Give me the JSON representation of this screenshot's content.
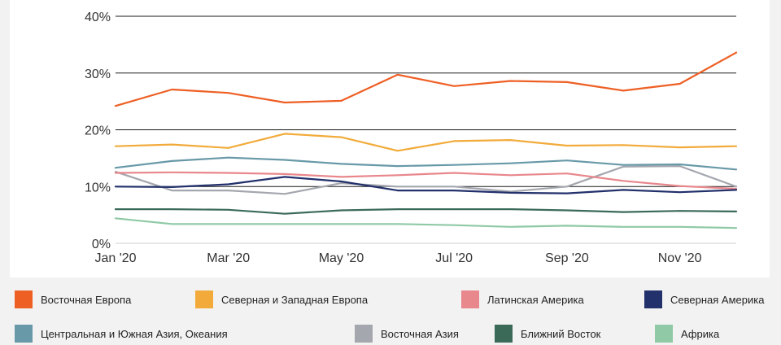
{
  "colors": {
    "Восточная Европа": "#ee5f24",
    "Северная и Западная Европа": "#f2ab3a",
    "Латинская Америка": "#e8878c",
    "Северная Америка": "#22306b",
    "Центральная и Южная Азия, Океания": "#6899a8",
    "Восточная Азия": "#a4a7ae",
    "Ближний Восток": "#3b6a59",
    "Африка": "#8fc9a6"
  },
  "chart_data": {
    "type": "line",
    "x": [
      "Jan '20",
      "Feb '20",
      "Mar '20",
      "Apr '20",
      "May '20",
      "Jun '20",
      "Jul '20",
      "Aug '20",
      "Sep '20",
      "Oct '20",
      "Nov '20",
      "Dec '20"
    ],
    "x_tick_labels": [
      "Jan '20",
      "Mar '20",
      "May '20",
      "Jul '20",
      "Sep '20",
      "Nov '20"
    ],
    "y_tick_labels": [
      "0%",
      "10%",
      "20%",
      "30%",
      "40%"
    ],
    "ylim": [
      0,
      40
    ],
    "y_unit": "%",
    "grid": "horizontal",
    "legend_position": "bottom",
    "series": [
      {
        "name": "Восточная Европа",
        "values": [
          24.2,
          27.1,
          26.5,
          24.8,
          25.1,
          29.7,
          27.7,
          28.6,
          28.4,
          26.9,
          28.1,
          33.6
        ]
      },
      {
        "name": "Северная и Западная Европа",
        "values": [
          17.1,
          17.4,
          16.8,
          19.3,
          18.7,
          16.3,
          18.0,
          18.2,
          17.2,
          17.3,
          16.9,
          17.1
        ]
      },
      {
        "name": "Латинская Америка",
        "values": [
          12.4,
          12.5,
          12.4,
          12.2,
          11.7,
          12.0,
          12.4,
          12.0,
          12.3,
          11.0,
          10.1,
          9.6
        ]
      },
      {
        "name": "Северная Америка",
        "values": [
          10.0,
          9.9,
          10.4,
          11.7,
          10.9,
          9.3,
          9.3,
          8.9,
          8.8,
          9.4,
          9.0,
          9.4
        ]
      },
      {
        "name": "Центральная и Южная Азия, Океания",
        "values": [
          13.3,
          14.5,
          15.1,
          14.7,
          14.0,
          13.6,
          13.8,
          14.1,
          14.6,
          13.8,
          13.9,
          13.0
        ]
      },
      {
        "name": "Восточная Азия",
        "values": [
          12.6,
          9.3,
          9.3,
          8.7,
          10.6,
          10.0,
          10.0,
          9.1,
          10.0,
          13.5,
          13.6,
          10.0
        ]
      },
      {
        "name": "Ближний Восток",
        "values": [
          6.0,
          6.0,
          5.9,
          5.2,
          5.8,
          6.0,
          6.0,
          6.0,
          5.8,
          5.5,
          5.7,
          5.6
        ]
      },
      {
        "name": "Африка",
        "values": [
          4.4,
          3.4,
          3.4,
          3.4,
          3.4,
          3.4,
          3.2,
          2.9,
          3.1,
          2.9,
          2.9,
          2.7
        ]
      }
    ]
  }
}
